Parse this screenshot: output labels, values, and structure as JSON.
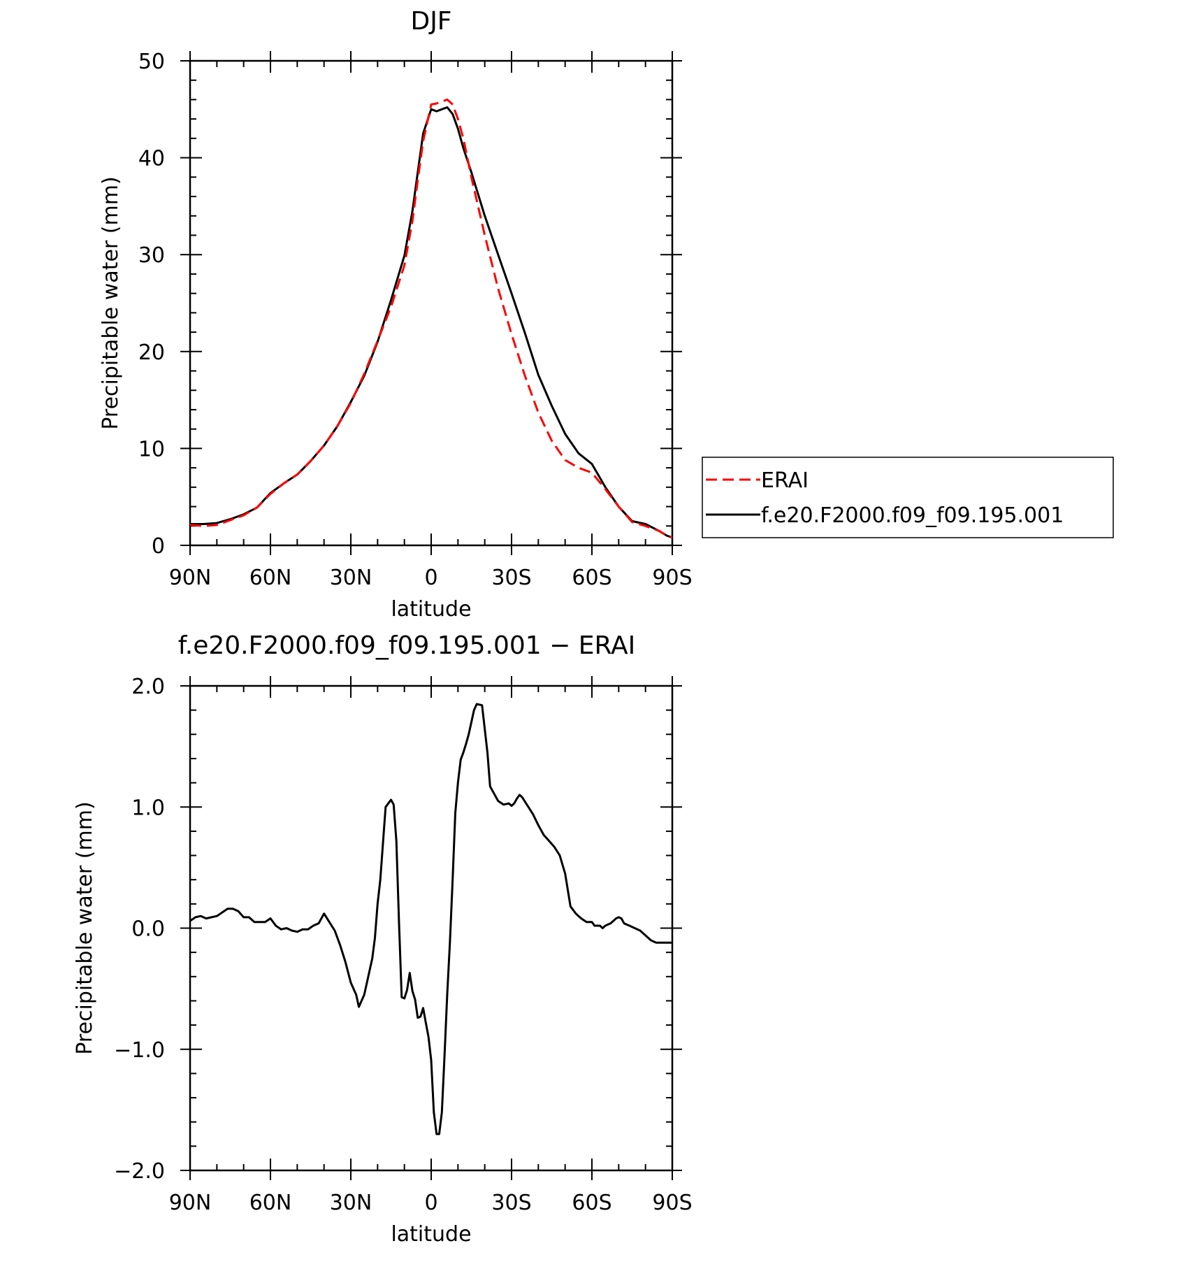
{
  "chart_data": [
    {
      "type": "line",
      "title": "DJF",
      "xlabel": "latitude",
      "ylabel": "Precipitable water (mm)",
      "xlim": [
        90,
        -90
      ],
      "ylim": [
        0,
        50
      ],
      "x_ticks": [
        {
          "value": 90,
          "label": "90N"
        },
        {
          "value": 60,
          "label": "60N"
        },
        {
          "value": 30,
          "label": "30N"
        },
        {
          "value": 0,
          "label": "0"
        },
        {
          "value": -30,
          "label": "30S"
        },
        {
          "value": -60,
          "label": "60S"
        },
        {
          "value": -90,
          "label": "90S"
        }
      ],
      "y_ticks": [
        {
          "value": 0,
          "label": "0"
        },
        {
          "value": 10,
          "label": "10"
        },
        {
          "value": 20,
          "label": "20"
        },
        {
          "value": 30,
          "label": "30"
        },
        {
          "value": 40,
          "label": "40"
        },
        {
          "value": 50,
          "label": "50"
        }
      ],
      "legend_position": "right",
      "series": [
        {
          "name": "ERAI",
          "color": "#ff0000",
          "dash": "dashed",
          "x": [
            90,
            85,
            80,
            75,
            70,
            65,
            60,
            55,
            50,
            45,
            40,
            35,
            30,
            25,
            20,
            15,
            10,
            7,
            5,
            3,
            0,
            -2,
            -4,
            -6,
            -8,
            -10,
            -12,
            -15,
            -20,
            -25,
            -30,
            -35,
            -40,
            -45,
            -50,
            -55,
            -60,
            -65,
            -70,
            -75,
            -80,
            -85,
            -88,
            -90
          ],
          "y": [
            2.1,
            2.0,
            2.1,
            2.6,
            3.1,
            3.9,
            5.3,
            6.4,
            7.3,
            8.7,
            10.3,
            12.3,
            14.7,
            17.7,
            21.1,
            24.6,
            28.9,
            33.5,
            37.7,
            41.7,
            45.5,
            45.6,
            45.8,
            46.0,
            45.5,
            44.0,
            42.0,
            38.0,
            32.0,
            26.5,
            21.8,
            17.5,
            13.7,
            10.8,
            8.8,
            8.0,
            7.5,
            5.8,
            4.0,
            2.4,
            2.0,
            1.5,
            1.0,
            0.8
          ]
        },
        {
          "name": "f.e20.F2000.f09_f09.195.001",
          "color": "#000000",
          "dash": "solid",
          "x": [
            90,
            85,
            80,
            75,
            70,
            65,
            60,
            55,
            50,
            45,
            40,
            35,
            30,
            25,
            20,
            15,
            10,
            7,
            5,
            3,
            0,
            -2,
            -4,
            -6,
            -8,
            -10,
            -12,
            -15,
            -20,
            -25,
            -30,
            -35,
            -40,
            -45,
            -50,
            -55,
            -60,
            -65,
            -70,
            -75,
            -80,
            -85,
            -88,
            -90
          ],
          "y": [
            2.2,
            2.2,
            2.3,
            2.7,
            3.2,
            3.9,
            5.4,
            6.4,
            7.3,
            8.7,
            10.3,
            12.3,
            14.8,
            17.5,
            21.0,
            25.3,
            29.9,
            34.5,
            38.5,
            42.5,
            45.0,
            44.8,
            45.0,
            45.2,
            44.5,
            43.0,
            41.0,
            38.5,
            34.0,
            30.0,
            26.0,
            21.9,
            17.6,
            14.4,
            11.5,
            9.5,
            8.4,
            6.0,
            4.0,
            2.5,
            2.2,
            1.5,
            1.0,
            0.8
          ]
        }
      ]
    },
    {
      "type": "line",
      "title": "f.e20.F2000.f09_f09.195.001 − ERAI",
      "xlabel": "latitude",
      "ylabel": "Precipitable water (mm)",
      "xlim": [
        90,
        -90
      ],
      "ylim": [
        -2.0,
        2.0
      ],
      "x_ticks": [
        {
          "value": 90,
          "label": "90N"
        },
        {
          "value": 60,
          "label": "60N"
        },
        {
          "value": 30,
          "label": "30N"
        },
        {
          "value": 0,
          "label": "0"
        },
        {
          "value": -30,
          "label": "30S"
        },
        {
          "value": -60,
          "label": "60S"
        },
        {
          "value": -90,
          "label": "90S"
        }
      ],
      "y_ticks": [
        {
          "value": -2.0,
          "label": "−2.0"
        },
        {
          "value": -1.0,
          "label": "−1.0"
        },
        {
          "value": 0.0,
          "label": "0.0"
        },
        {
          "value": 1.0,
          "label": "1.0"
        },
        {
          "value": 2.0,
          "label": "2.0"
        }
      ],
      "series": [
        {
          "color": "#000000",
          "dash": "solid",
          "x": [
            90,
            88,
            86,
            84,
            82,
            80,
            78,
            76,
            74,
            72,
            70,
            68,
            66,
            64,
            62,
            60,
            58,
            56,
            54,
            52,
            50,
            48,
            46,
            44,
            42,
            40,
            38,
            36,
            34,
            32,
            30,
            28,
            27,
            25,
            22,
            21,
            20,
            19,
            18,
            17,
            15,
            14,
            13,
            12,
            11,
            10,
            9,
            8,
            7,
            6,
            5,
            4,
            3,
            2,
            1,
            0,
            1e-09,
            -1,
            -2,
            -3,
            -4,
            -5,
            -6,
            -7,
            -8,
            -9,
            -10,
            -11,
            -12,
            -13,
            -14,
            -15,
            -16,
            -17,
            -19,
            -21,
            -22,
            -25,
            -27,
            -29,
            -30,
            -31,
            -32,
            -33,
            -34,
            -36,
            -38,
            -40,
            -42,
            -44,
            -46,
            -48,
            -50,
            -52,
            -54,
            -56,
            -58,
            -60,
            -61,
            -62,
            -63,
            -64,
            -65,
            -66,
            -67,
            -68,
            -69,
            -70,
            -71,
            -72,
            -74,
            -76,
            -78,
            -80,
            -81,
            -82,
            -83,
            -84,
            -85,
            -86,
            -88,
            -90
          ],
          "y": [
            0.06,
            0.09,
            0.1,
            0.08,
            0.09,
            0.1,
            0.13,
            0.16,
            0.16,
            0.14,
            0.09,
            0.09,
            0.05,
            0.05,
            0.05,
            0.08,
            0.02,
            -0.01,
            0.0,
            -0.02,
            -0.03,
            -0.01,
            -0.01,
            0.02,
            0.04,
            0.12,
            0.05,
            -0.02,
            -0.14,
            -0.28,
            -0.45,
            -0.55,
            -0.65,
            -0.55,
            -0.25,
            -0.08,
            0.2,
            0.4,
            0.7,
            1.0,
            1.06,
            1.02,
            0.72,
            0.04,
            -0.57,
            -0.58,
            -0.51,
            -0.37,
            -0.52,
            -0.59,
            -0.74,
            -0.73,
            -0.66,
            -0.78,
            -0.9,
            -1.09,
            -1.09,
            -1.52,
            -1.7,
            -1.7,
            -1.52,
            -1.04,
            -0.54,
            -0.12,
            0.4,
            0.95,
            1.2,
            1.39,
            1.45,
            1.52,
            1.6,
            1.7,
            1.8,
            1.85,
            1.84,
            1.45,
            1.17,
            1.05,
            1.02,
            1.03,
            1.01,
            1.03,
            1.07,
            1.1,
            1.08,
            1.01,
            0.94,
            0.85,
            0.77,
            0.72,
            0.67,
            0.6,
            0.45,
            0.18,
            0.12,
            0.08,
            0.05,
            0.05,
            0.02,
            0.02,
            0.02,
            0.0,
            0.02,
            0.03,
            0.04,
            0.06,
            0.08,
            0.09,
            0.08,
            0.04,
            0.02,
            0.0,
            -0.02,
            -0.06,
            -0.08,
            -0.1,
            -0.11,
            -0.12,
            -0.12,
            -0.12,
            -0.12,
            -0.12
          ]
        }
      ]
    }
  ],
  "legend": {
    "items": [
      "ERAI",
      "f.e20.F2000.f09_f09.195.001"
    ]
  }
}
